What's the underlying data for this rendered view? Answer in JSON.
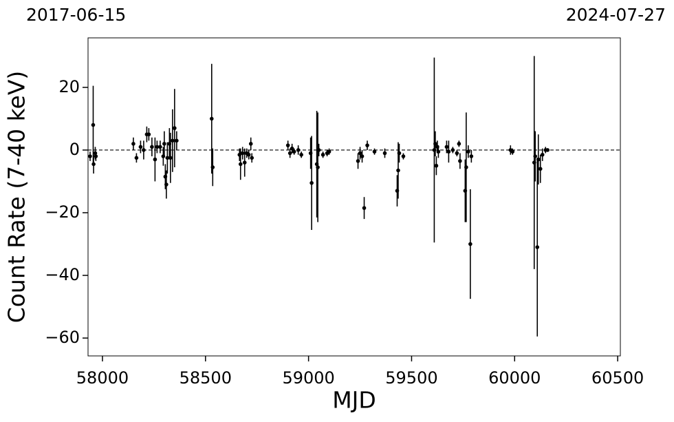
{
  "chart_data": {
    "type": "errorbar-scatter",
    "top_left_label": "2017-06-15",
    "top_right_label": "2024-07-27",
    "xlabel": "MJD",
    "ylabel": "Count Rate (7-40 keV)",
    "color": "#000000",
    "hline": 0,
    "xlim": [
      57930,
      60513
    ],
    "ylim": [
      -65.7,
      35.8
    ],
    "xticks": [
      58000,
      58500,
      59000,
      59500,
      60000,
      60500
    ],
    "yticks": [
      {
        "value": -60,
        "label": "−60"
      },
      {
        "value": -40,
        "label": "−40"
      },
      {
        "value": -20,
        "label": "−20"
      },
      0,
      20
    ],
    "x": [
      57940,
      57955,
      57957,
      57965,
      57968,
      58150,
      58165,
      58185,
      58200,
      58215,
      58225,
      58240,
      58255,
      58265,
      58280,
      58295,
      58300,
      58305,
      58310,
      58315,
      58325,
      58330,
      58340,
      58350,
      58360,
      58530,
      58535,
      58665,
      58670,
      58680,
      58690,
      58700,
      58710,
      58720,
      58725,
      58900,
      58910,
      58920,
      58930,
      58950,
      58965,
      59010,
      59015,
      59040,
      59045,
      59050,
      59070,
      59090,
      59100,
      59240,
      59250,
      59260,
      59270,
      59285,
      59320,
      59370,
      59430,
      59435,
      59440,
      59460,
      59610,
      59615,
      59620,
      59625,
      59630,
      59670,
      59680,
      59700,
      59720,
      59730,
      59735,
      59760,
      59765,
      59775,
      59785,
      59790,
      59980,
      59990,
      60095,
      60100,
      60110,
      60115,
      60125,
      60135,
      60150,
      60160
    ],
    "values": [
      -2,
      8,
      -4.5,
      -1,
      -2,
      2,
      -2.5,
      1,
      0,
      5,
      5,
      1,
      -3,
      1,
      1,
      -2,
      2,
      -8.5,
      -11,
      -2.5,
      2,
      -2.5,
      3,
      7,
      3,
      10,
      -5.5,
      -1.5,
      -4.5,
      -1,
      -4,
      -1,
      -1.5,
      2,
      -2.5,
      1.5,
      -1,
      0.5,
      -0.5,
      0,
      -1.5,
      -1,
      -10.5,
      -4.5,
      -5.5,
      0,
      -1.5,
      -1,
      -0.5,
      -3.5,
      -1,
      -2,
      -18.5,
      1.5,
      -0.5,
      -1,
      -13,
      -6.5,
      -1,
      -2,
      0,
      2,
      -5,
      1,
      -0.5,
      1,
      -0.5,
      0,
      -1,
      2,
      -3.5,
      -13,
      -5.5,
      -0.5,
      -30,
      -2,
      0,
      -0.5,
      -4,
      -2,
      -31,
      -3,
      -6,
      -1.5,
      0,
      0
    ],
    "errors": [
      1.5,
      12.5,
      3,
      2,
      1.5,
      2,
      1.5,
      2,
      3,
      2.5,
      2,
      3,
      7,
      2,
      2,
      3,
      4,
      4,
      4.5,
      5,
      5,
      8,
      10,
      12.5,
      3,
      17.5,
      6,
      2,
      5,
      2,
      4.5,
      1.5,
      1.5,
      2,
      1.5,
      1.5,
      1.5,
      1.5,
      1,
      1.5,
      1,
      5,
      15,
      17,
      17.5,
      2,
      1,
      1,
      1,
      2.5,
      2,
      2,
      3.5,
      1.5,
      1,
      1.5,
      5,
      9,
      3,
      1,
      29.5,
      4,
      3,
      2,
      2,
      2,
      3.5,
      1,
      1,
      1,
      2.5,
      10,
      17.5,
      2,
      17.5,
      2,
      1.5,
      1,
      34,
      8,
      28.5,
      8,
      4.5,
      2,
      1,
      0.5
    ]
  }
}
